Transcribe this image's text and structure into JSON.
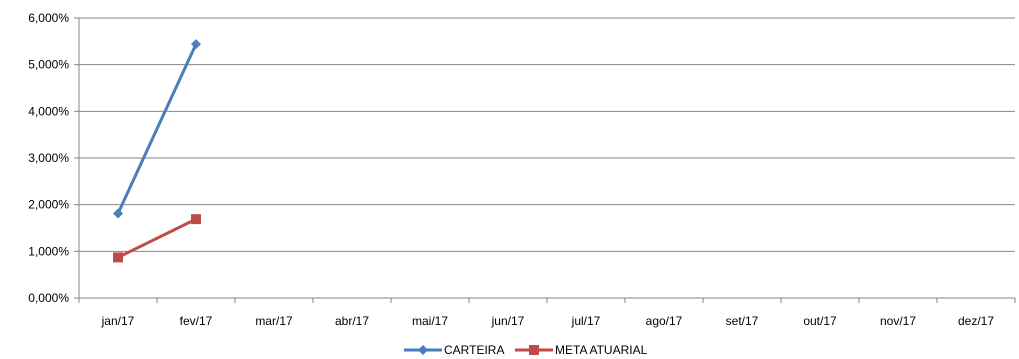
{
  "chart_data": {
    "type": "line",
    "title": "",
    "xlabel": "",
    "ylabel": "",
    "categories": [
      "jan/17",
      "fev/17",
      "mar/17",
      "abr/17",
      "mai/17",
      "jun/17",
      "jul/17",
      "ago/17",
      "set/17",
      "out/17",
      "nov/17",
      "dez/17"
    ],
    "y_ticks": [
      "0,000%",
      "1,000%",
      "2,000%",
      "3,000%",
      "4,000%",
      "5,000%",
      "6,000%"
    ],
    "ylim": [
      0,
      6
    ],
    "grid": "horizontal",
    "legend_position": "bottom",
    "series": [
      {
        "name": "CARTEIRA",
        "color": "#4a7ebb",
        "marker": "diamond",
        "values": [
          1.81,
          5.44,
          null,
          null,
          null,
          null,
          null,
          null,
          null,
          null,
          null,
          null
        ]
      },
      {
        "name": "META ATUARIAL",
        "color": "#be4b48",
        "marker": "square",
        "values": [
          0.87,
          1.69,
          null,
          null,
          null,
          null,
          null,
          null,
          null,
          null,
          null,
          null
        ]
      }
    ]
  }
}
